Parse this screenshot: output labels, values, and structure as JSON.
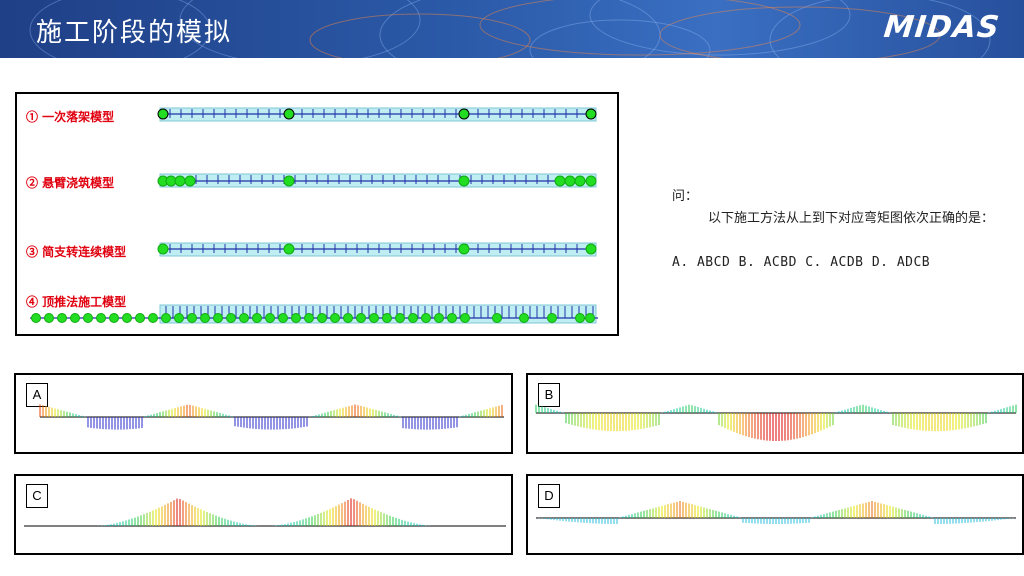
{
  "header": {
    "title": "施工阶段的模拟",
    "logo_text": "MIDAS"
  },
  "models": [
    {
      "label": "① 一次落架模型",
      "type": "one-shot"
    },
    {
      "label": "② 悬臂浇筑模型",
      "type": "cantilever"
    },
    {
      "label": "③ 简支转连续模型",
      "type": "simple-to-continuous"
    },
    {
      "label": "④ 顶推法施工模型",
      "type": "incremental-launching"
    }
  ],
  "question": {
    "head": "问：",
    "body": "以下施工方法从上到下对应弯矩图依次正确的是：",
    "options": "A. ABCD  B. ACBD  C. ACDB  D. ADCB"
  },
  "diagrams": [
    {
      "letter": "A"
    },
    {
      "letter": "B"
    },
    {
      "letter": "C"
    },
    {
      "letter": "D"
    }
  ],
  "colors": {
    "banner": "#2b5aa8",
    "label_red": "#e0000f",
    "node_green": "#22dd22",
    "beam_fill": "#bfeef2"
  }
}
